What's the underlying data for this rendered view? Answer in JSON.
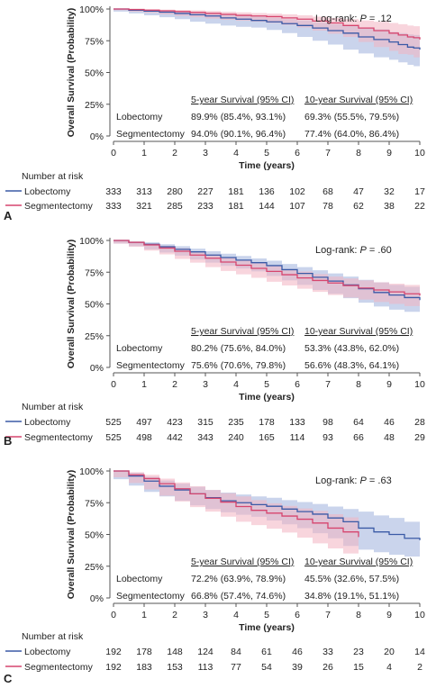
{
  "chart_data": [
    {
      "type": "line",
      "panel_label": "A",
      "ylabel": "Overall Survival (Probability)",
      "xlabel": "Time (years)",
      "xlim": [
        0,
        10
      ],
      "ylim": [
        0,
        100
      ],
      "x_ticks": [
        "0",
        "1",
        "2",
        "3",
        "4",
        "5",
        "6",
        "7",
        "8",
        "9",
        "10"
      ],
      "y_ticks": [
        "0%",
        "25%",
        "50%",
        "75%",
        "100%"
      ],
      "annotation": {
        "prefix": "Log-rank: ",
        "p": "P",
        "suffix": " = .12"
      },
      "table": {
        "headers": [
          "5-year Survival (95% CI)",
          "10-year Survival (95% CI)"
        ],
        "rows": [
          {
            "label": "Lobectomy",
            "five": "89.9% (85.4%, 93.1%)",
            "ten": "69.3% (55.5%, 79.5%)"
          },
          {
            "label": "Segmentectomy",
            "five": "94.0% (90.1%, 96.4%)",
            "ten": "77.4% (64.0%, 86.4%)"
          }
        ]
      },
      "risk_title": "Number at risk",
      "series": [
        {
          "name": "Lobectomy",
          "color": "#3a5aa6",
          "band": "#9fb0dc",
          "x": [
            0,
            0.5,
            1,
            1.5,
            2,
            2.5,
            3,
            3.5,
            4,
            4.5,
            5,
            5.5,
            6,
            6.5,
            7,
            7.5,
            8,
            8.5,
            9,
            9.3,
            9.6,
            9.8,
            10
          ],
          "y": [
            100,
            99,
            98.3,
            97.5,
            96.5,
            95.5,
            94.5,
            93,
            92,
            91,
            89.9,
            88.5,
            87,
            85,
            83,
            81,
            78,
            76,
            74,
            72,
            70,
            69.3,
            68
          ],
          "lower": [
            100,
            98,
            96.5,
            95,
            93.5,
            92,
            90,
            88.5,
            87,
            86,
            85.4,
            83.5,
            81,
            78,
            75,
            72,
            68,
            65,
            62,
            60,
            58,
            56,
            55
          ],
          "upper": [
            100,
            100,
            99.3,
            98.8,
            98.2,
            97.5,
            96.8,
            95.8,
            94.8,
            94,
            93.1,
            92,
            91,
            89.5,
            88,
            86.5,
            85,
            84,
            82,
            81,
            80,
            79.5,
            79
          ],
          "at_risk": [
            "333",
            "313",
            "280",
            "227",
            "181",
            "136",
            "102",
            "68",
            "47",
            "32",
            "17"
          ]
        },
        {
          "name": "Segmentectomy",
          "color": "#d6456e",
          "band": "#f2b3c1",
          "x": [
            0,
            0.5,
            1,
            1.5,
            2,
            2.5,
            3,
            3.5,
            4,
            4.5,
            5,
            5.5,
            6,
            6.5,
            7,
            7.5,
            8,
            8.5,
            9,
            9.3,
            9.6,
            9.8,
            10
          ],
          "y": [
            100,
            99.6,
            99.1,
            98.6,
            98,
            97.3,
            96.6,
            95.8,
            95,
            94.5,
            94,
            93,
            92,
            90.5,
            89,
            87,
            85,
            83,
            81,
            79.5,
            78,
            77.4,
            76
          ],
          "lower": [
            100,
            99,
            98,
            97,
            95.8,
            94.6,
            93.5,
            92.5,
            91.5,
            90.8,
            90.1,
            89,
            87.5,
            85.5,
            83,
            80.5,
            78,
            74,
            70,
            67,
            64.5,
            64,
            62
          ],
          "upper": [
            100,
            100,
            99.8,
            99.5,
            99.2,
            98.9,
            98.5,
            97.9,
            97.3,
            96.8,
            96.4,
            95.8,
            95,
            94,
            93,
            92,
            91,
            90,
            89,
            88,
            87,
            86.4,
            86
          ],
          "at_risk": [
            "333",
            "321",
            "285",
            "233",
            "181",
            "144",
            "107",
            "78",
            "62",
            "38",
            "22"
          ]
        }
      ]
    },
    {
      "type": "line",
      "panel_label": "B",
      "ylabel": "Overall Survival (Probability)",
      "xlabel": "Time (years)",
      "xlim": [
        0,
        10
      ],
      "ylim": [
        0,
        100
      ],
      "x_ticks": [
        "0",
        "1",
        "2",
        "3",
        "4",
        "5",
        "6",
        "7",
        "8",
        "9",
        "10"
      ],
      "y_ticks": [
        "0%",
        "25%",
        "50%",
        "75%",
        "100%"
      ],
      "annotation": {
        "prefix": "Log-rank: ",
        "p": "P",
        "suffix": " = .60"
      },
      "table": {
        "headers": [
          "5-year Survival (95% CI)",
          "10-year Survival (95% CI)"
        ],
        "rows": [
          {
            "label": "Lobectomy",
            "five": "80.2% (75.6%, 84.0%)",
            "ten": "53.3% (43.8%, 62.0%)"
          },
          {
            "label": "Segmentectomy",
            "five": "75.6% (70.6%, 79.8%)",
            "ten": "56.6% (48.3%, 64.1%)"
          }
        ]
      },
      "risk_title": "Number at risk",
      "series": [
        {
          "name": "Lobectomy",
          "color": "#3a5aa6",
          "band": "#9fb0dc",
          "x": [
            0,
            0.5,
            1,
            1.5,
            2,
            2.5,
            3,
            3.5,
            4,
            4.5,
            5,
            5.5,
            6,
            6.5,
            7,
            7.5,
            8,
            8.5,
            9,
            9.5,
            10
          ],
          "y": [
            100,
            98.5,
            97,
            95,
            93,
            91,
            88.5,
            86.5,
            84.5,
            82.5,
            80.2,
            77,
            74,
            71,
            68,
            65,
            62,
            59,
            57,
            55,
            53
          ],
          "lower": [
            100,
            97.5,
            95.5,
            93,
            90.5,
            88,
            85,
            82.5,
            80,
            77.8,
            75.6,
            72,
            68.5,
            65,
            61,
            58,
            54.5,
            51,
            48,
            45.5,
            43.8
          ],
          "upper": [
            100,
            99.5,
            98.5,
            97,
            95.5,
            93.5,
            91.5,
            89.5,
            87.8,
            85.8,
            84,
            81.5,
            79,
            76.5,
            74,
            71.5,
            69,
            67,
            65,
            63.5,
            62
          ]
        },
        {
          "name": "Segmentectomy",
          "color": "#d6456e",
          "band": "#f2b3c1",
          "x": [
            0,
            0.5,
            1,
            1.5,
            2,
            2.5,
            3,
            3.5,
            4,
            4.5,
            5,
            5.5,
            6,
            6.5,
            7,
            7.5,
            8,
            8.5,
            9,
            9.5,
            10
          ],
          "y": [
            100,
            98.5,
            96.5,
            94,
            91.5,
            88.5,
            86,
            83,
            80.5,
            78,
            75.6,
            73,
            70.5,
            68.5,
            66.5,
            64.5,
            62.5,
            61,
            59.5,
            58,
            56.6
          ],
          "lower": [
            100,
            97.5,
            95,
            92,
            89,
            85.5,
            82.5,
            79,
            76,
            73.3,
            70.6,
            67.5,
            64.5,
            62,
            59.5,
            57,
            55,
            53.5,
            51.5,
            50,
            48.3
          ],
          "upper": [
            100,
            99.3,
            97.8,
            95.8,
            93.8,
            91.3,
            89,
            86.5,
            84.5,
            82.2,
            79.8,
            77.5,
            75.5,
            73.5,
            71.5,
            70,
            68.5,
            67,
            66,
            65,
            64.1
          ]
        }
      ],
      "at_risk": {
        "Lobectomy": [
          "525",
          "497",
          "423",
          "315",
          "235",
          "178",
          "133",
          "98",
          "64",
          "46",
          "28"
        ],
        "Segmentectomy": [
          "525",
          "498",
          "442",
          "343",
          "240",
          "165",
          "114",
          "93",
          "66",
          "48",
          "29"
        ]
      }
    },
    {
      "type": "line",
      "panel_label": "C",
      "ylabel": "Overall Survival (Probability)",
      "xlabel": "Time (years)",
      "xlim": [
        0,
        10
      ],
      "ylim": [
        0,
        100
      ],
      "x_ticks": [
        "0",
        "1",
        "2",
        "3",
        "4",
        "5",
        "6",
        "7",
        "8",
        "9",
        "10"
      ],
      "y_ticks": [
        "0%",
        "25%",
        "50%",
        "75%",
        "100%"
      ],
      "annotation": {
        "prefix": "Log-rank: ",
        "p": "P",
        "suffix": " = .63"
      },
      "table": {
        "headers": [
          "5-year Survival (95% CI)",
          "10-year Survival (95% CI)"
        ],
        "rows": [
          {
            "label": "Lobectomy",
            "five": "72.2% (63.9%, 78.9%)",
            "ten": "45.5% (32.6%, 57.5%)"
          },
          {
            "label": "Segmentectomy",
            "five": "66.8% (57.4%, 74.6%)",
            "ten": "34.8% (19.1%, 51.1%)"
          }
        ]
      },
      "risk_title": "Number at risk",
      "series": [
        {
          "name": "Lobectomy",
          "color": "#3a5aa6",
          "band": "#9fb0dc",
          "x": [
            0,
            0.5,
            1,
            1.5,
            2,
            2.5,
            3,
            3.5,
            4,
            4.5,
            5,
            5.5,
            6,
            6.5,
            7,
            7.5,
            8,
            8.5,
            9,
            9.5,
            10
          ],
          "y": [
            100,
            96,
            92,
            88,
            85,
            82,
            79,
            76.5,
            75,
            73.5,
            72.2,
            70,
            68,
            66,
            63,
            60,
            55,
            52,
            50,
            47,
            45.5
          ],
          "lower": [
            100,
            93.5,
            88.5,
            83.5,
            80,
            76.5,
            73,
            70,
            67.5,
            65.5,
            63.9,
            61,
            58,
            55,
            51,
            47,
            41,
            38,
            36,
            34,
            32.6
          ],
          "upper": [
            100,
            98.5,
            95.5,
            92.5,
            90,
            87.5,
            85,
            83,
            81.5,
            80,
            78.9,
            77,
            75.5,
            74,
            72,
            70,
            68,
            65,
            63,
            60,
            57.5
          ]
        },
        {
          "name": "Segmentectomy",
          "color": "#d6456e",
          "band": "#f2b3c1",
          "x": [
            0,
            0.5,
            1,
            1.5,
            2,
            2.5,
            3,
            3.5,
            4,
            4.5,
            5,
            5.5,
            6,
            6.5,
            7,
            7.5,
            8
          ],
          "y": [
            100,
            97,
            94,
            90,
            86,
            82,
            78.5,
            75.5,
            72,
            69,
            66.8,
            64.5,
            62,
            59,
            55,
            52,
            48
          ],
          "lower": [
            100,
            95,
            90.5,
            85.5,
            80.5,
            76,
            71.5,
            68,
            64,
            60,
            57.4,
            54.5,
            51.5,
            47.5,
            43,
            39,
            35
          ],
          "upper": [
            100,
            99,
            97,
            94,
            91,
            88,
            85,
            82.5,
            80,
            77,
            74.6,
            72.5,
            70.5,
            68.5,
            66,
            63.5,
            61
          ]
        }
      ],
      "at_risk": {
        "Lobectomy": [
          "192",
          "178",
          "148",
          "124",
          "84",
          "61",
          "46",
          "33",
          "23",
          "20",
          "14"
        ],
        "Segmentectomy": [
          "192",
          "183",
          "153",
          "113",
          "77",
          "54",
          "39",
          "26",
          "15",
          "4",
          "2"
        ]
      }
    }
  ]
}
